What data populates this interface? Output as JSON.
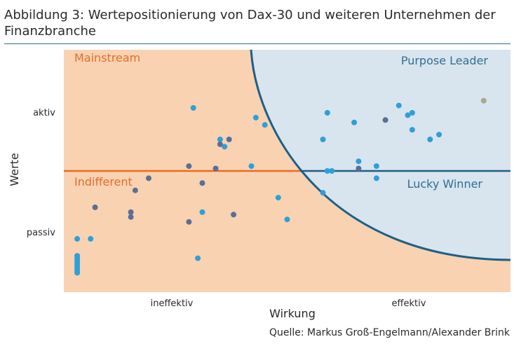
{
  "title": "Abbildung 3: Wertepositionierung von Dax-30 und weiteren Unternehmen der Finanzbranche",
  "source": "Quelle: Markus Groß-Engelmann/Alexander Brink",
  "colors": {
    "mainstream_bg": "#f9d2b2",
    "purpose_bg": "#d8e4ee",
    "curve": "#1d5f86",
    "orange_line": "#ec6b1d",
    "dot_light": "#2f9fd8",
    "dot_dark": "#5a6f95",
    "dot_gray": "#a8a98d",
    "quadrant_orange": "#e26e2d",
    "quadrant_blue": "#2f6f93"
  },
  "chart_data": {
    "type": "scatter",
    "xlabel": "Wirkung",
    "ylabel": "Werte",
    "x_tick_labels": [
      "ineffektiv",
      "effektiv"
    ],
    "y_tick_labels": [
      "aktiv",
      "passiv"
    ],
    "xlim": [
      0,
      100
    ],
    "ylim": [
      0,
      100
    ],
    "quadrants": {
      "top_left": "Mainstream",
      "top_right": "Purpose Leader",
      "bottom_left": "Indifferent",
      "bottom_right": "Lucky Winner"
    },
    "series": [
      {
        "color": "light",
        "points": [
          [
            3,
            15
          ],
          [
            3,
            14
          ],
          [
            3,
            13
          ],
          [
            3,
            12
          ],
          [
            3,
            11
          ],
          [
            3,
            10
          ],
          [
            3,
            9
          ],
          [
            3,
            8
          ],
          [
            3,
            22
          ],
          [
            6,
            22
          ],
          [
            30,
            14
          ],
          [
            31,
            33
          ],
          [
            29,
            76
          ],
          [
            35,
            63
          ],
          [
            36,
            60
          ],
          [
            42,
            52
          ],
          [
            43,
            72
          ],
          [
            45,
            69
          ],
          [
            48,
            39
          ],
          [
            50,
            30
          ],
          [
            58,
            41
          ],
          [
            59,
            50
          ],
          [
            60,
            50
          ],
          [
            58,
            63
          ],
          [
            59,
            74
          ],
          [
            65,
            70
          ],
          [
            70,
            47
          ],
          [
            66,
            54
          ],
          [
            70,
            52
          ],
          [
            75,
            77
          ],
          [
            77,
            73
          ],
          [
            78,
            74
          ],
          [
            78,
            67
          ],
          [
            82,
            63
          ],
          [
            84,
            65
          ]
        ]
      },
      {
        "color": "dark",
        "points": [
          [
            7,
            35
          ],
          [
            15,
            33
          ],
          [
            15,
            31
          ],
          [
            16,
            42
          ],
          [
            19,
            47
          ],
          [
            28,
            52
          ],
          [
            28,
            29
          ],
          [
            31,
            45
          ],
          [
            34,
            51
          ],
          [
            35,
            61
          ],
          [
            37,
            63
          ],
          [
            38,
            32
          ],
          [
            66,
            51
          ],
          [
            72,
            71
          ]
        ]
      },
      {
        "color": "gray",
        "points": [
          [
            94,
            79
          ]
        ]
      }
    ]
  }
}
